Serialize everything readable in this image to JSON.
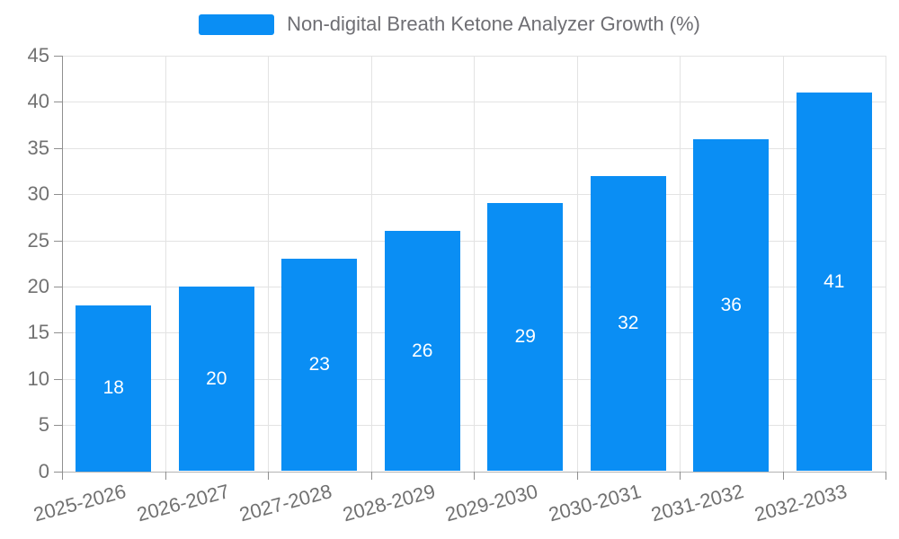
{
  "chart_data": {
    "type": "bar",
    "title": "",
    "legend": "Non-digital Breath Ketone Analyzer Growth (%)",
    "categories": [
      "2025-2026",
      "2026-2027",
      "2027-2028",
      "2028-2029",
      "2029-2030",
      "2030-2031",
      "2031-2032",
      "2032-2033"
    ],
    "values": [
      18,
      20,
      23,
      26,
      29,
      32,
      36,
      41
    ],
    "xlabel": "",
    "ylabel": "",
    "ylim": [
      0,
      45
    ],
    "yticks": [
      0,
      5,
      10,
      15,
      20,
      25,
      30,
      35,
      40,
      45
    ],
    "grid": true,
    "legend_position": "top-center",
    "colors": {
      "bar": "#0a8ef4",
      "bar_label": "#ffffff",
      "axis_text": "#717171",
      "legend_text": "#6e6e73",
      "gridline": "#e3e3e3",
      "y_axis_line": "#8f8f8f",
      "x_axis_line": "#b4b4b4",
      "background": "#ffffff"
    }
  }
}
